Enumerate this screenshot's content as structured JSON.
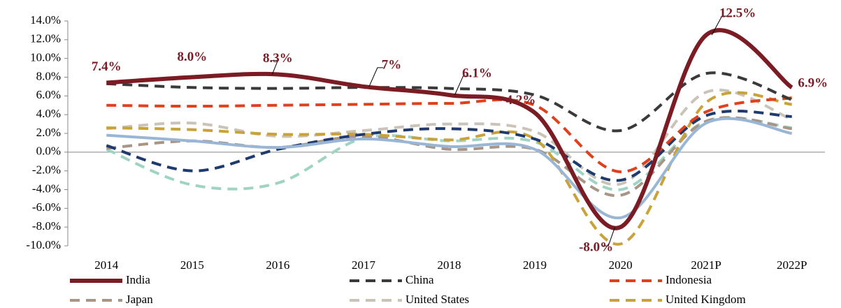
{
  "chart_data": {
    "type": "line",
    "categories": [
      "2014",
      "2015",
      "2016",
      "2017",
      "2018",
      "2019",
      "2020",
      "2021P",
      "2022P"
    ],
    "ylim": [
      -10,
      14
    ],
    "yticks": [
      {
        "value": -10,
        "label": "-10.0%"
      },
      {
        "value": -8,
        "label": "-8.0%"
      },
      {
        "value": -6,
        "label": "-6.0%"
      },
      {
        "value": -4,
        "label": "-4.0%"
      },
      {
        "value": -2,
        "label": "-2.0%"
      },
      {
        "value": 0,
        "label": "0.0%"
      },
      {
        "value": 2,
        "label": "2.0%"
      },
      {
        "value": 4,
        "label": "4.0%"
      },
      {
        "value": 6,
        "label": "6.0%"
      },
      {
        "value": 8,
        "label": "8.0%"
      },
      {
        "value": 10,
        "label": "10.0%"
      },
      {
        "value": 12,
        "label": "12.0%"
      },
      {
        "value": 14,
        "label": "14.0%"
      }
    ],
    "series": [
      {
        "color": "#9fd4c4",
        "dash": true,
        "values": [
          0.3,
          -3.5,
          -3.3,
          1.5,
          1.2,
          1.1,
          -4.0,
          3.3,
          2.6
        ]
      },
      {
        "name": "Japan",
        "color": "#a89585",
        "dash": true,
        "values": [
          0.4,
          1.2,
          0.5,
          1.7,
          0.3,
          0.3,
          -4.6,
          3.3,
          2.5
        ]
      },
      {
        "name": "United States",
        "color": "#cbc3b8",
        "dash": true,
        "values": [
          2.5,
          3.1,
          1.7,
          2.3,
          3.0,
          2.2,
          -3.4,
          6.4,
          3.5
        ]
      },
      {
        "name": "United Kingdom",
        "color": "#c9a23a",
        "dash": true,
        "values": [
          2.6,
          2.4,
          1.9,
          1.9,
          1.3,
          1.4,
          -9.8,
          5.3,
          5.1
        ]
      },
      {
        "color": "#1f3a6e",
        "dash": true,
        "values": [
          0.7,
          -2.0,
          0.3,
          1.9,
          2.5,
          1.4,
          -3.0,
          3.9,
          3.8
        ]
      },
      {
        "color": "#9ab6d6",
        "dash": false,
        "values": [
          1.8,
          1.2,
          0.5,
          1.4,
          0.6,
          0.3,
          -7.0,
          3.1,
          2.0
        ]
      },
      {
        "name": "Indonesia",
        "color": "#e0401b",
        "dash": true,
        "values": [
          5.0,
          4.9,
          5.0,
          5.1,
          5.2,
          5.0,
          -2.1,
          4.3,
          5.8
        ]
      },
      {
        "name": "China",
        "color": "#3a3a3a",
        "dash": true,
        "values": [
          7.3,
          6.9,
          6.8,
          6.9,
          6.8,
          6.1,
          2.3,
          8.4,
          5.6
        ]
      },
      {
        "name": "India",
        "color": "#7b1c25",
        "dash": false,
        "values": [
          7.4,
          8.0,
          8.3,
          7.0,
          6.1,
          4.2,
          -8.0,
          12.5,
          6.9
        ],
        "value_labels": [
          "7.4%",
          "8.0%",
          "8.3%",
          "7%",
          "6.1%",
          "4.2%",
          "-8.0%",
          "12.5%",
          "6.9%"
        ]
      }
    ]
  }
}
